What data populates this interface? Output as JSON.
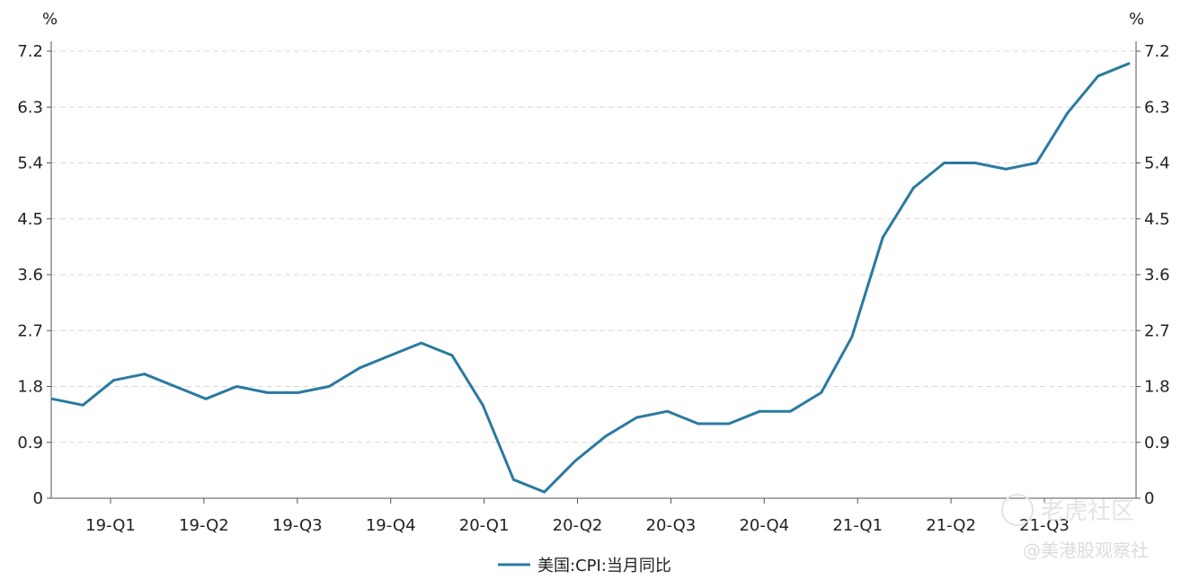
{
  "chart_data": {
    "type": "line",
    "y_unit_left": "%",
    "y_unit_right": "%",
    "ylim": [
      0,
      7.2
    ],
    "y_ticks": [
      "0",
      "0.9",
      "1.8",
      "2.7",
      "3.6",
      "4.5",
      "5.4",
      "6.3",
      "7.2"
    ],
    "x_ticks": [
      "19-Q1",
      "19-Q2",
      "19-Q3",
      "19-Q4",
      "20-Q1",
      "20-Q2",
      "20-Q3",
      "20-Q4",
      "21-Q1",
      "21-Q2",
      "21-Q3"
    ],
    "grid": "horizontal-dashed",
    "legend_position": "bottom-center",
    "series": [
      {
        "name": "美国:CPI:当月同比",
        "color": "#2a7aa0",
        "values": [
          1.6,
          1.5,
          1.9,
          2.0,
          1.8,
          1.6,
          1.8,
          1.7,
          1.7,
          1.8,
          2.1,
          2.3,
          2.5,
          2.3,
          1.5,
          0.3,
          0.1,
          0.6,
          1.0,
          1.3,
          1.4,
          1.2,
          1.2,
          1.4,
          1.4,
          1.7,
          2.6,
          4.2,
          5.0,
          5.4,
          5.4,
          5.3,
          5.4,
          6.2,
          6.8,
          7.0
        ]
      }
    ]
  },
  "watermark": {
    "text": "老虎社区",
    "subtext": "@美港股观察社"
  }
}
